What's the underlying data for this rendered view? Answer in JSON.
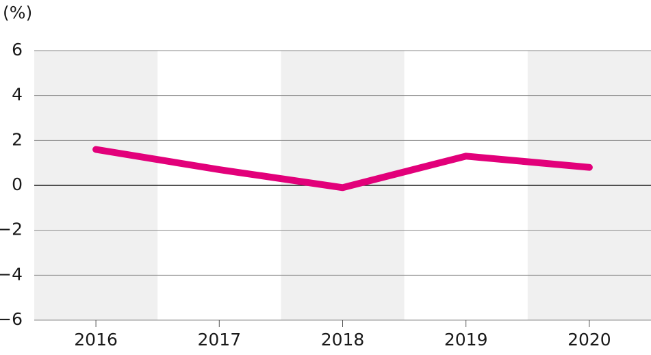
{
  "chart_data": {
    "type": "line",
    "y_label": "(%)",
    "categories": [
      "2016",
      "2017",
      "2018",
      "2019",
      "2020"
    ],
    "series": [
      {
        "name": null,
        "color": "#e2007a",
        "values": [
          1.6,
          0.7,
          -0.1,
          1.3,
          0.8
        ]
      }
    ],
    "ylim": [
      -6,
      6
    ],
    "yticks": [
      {
        "value": -6,
        "label": "−6"
      },
      {
        "value": -4,
        "label": "−4"
      },
      {
        "value": -2,
        "label": "−2"
      },
      0,
      2,
      4,
      6
    ],
    "grid": true
  }
}
